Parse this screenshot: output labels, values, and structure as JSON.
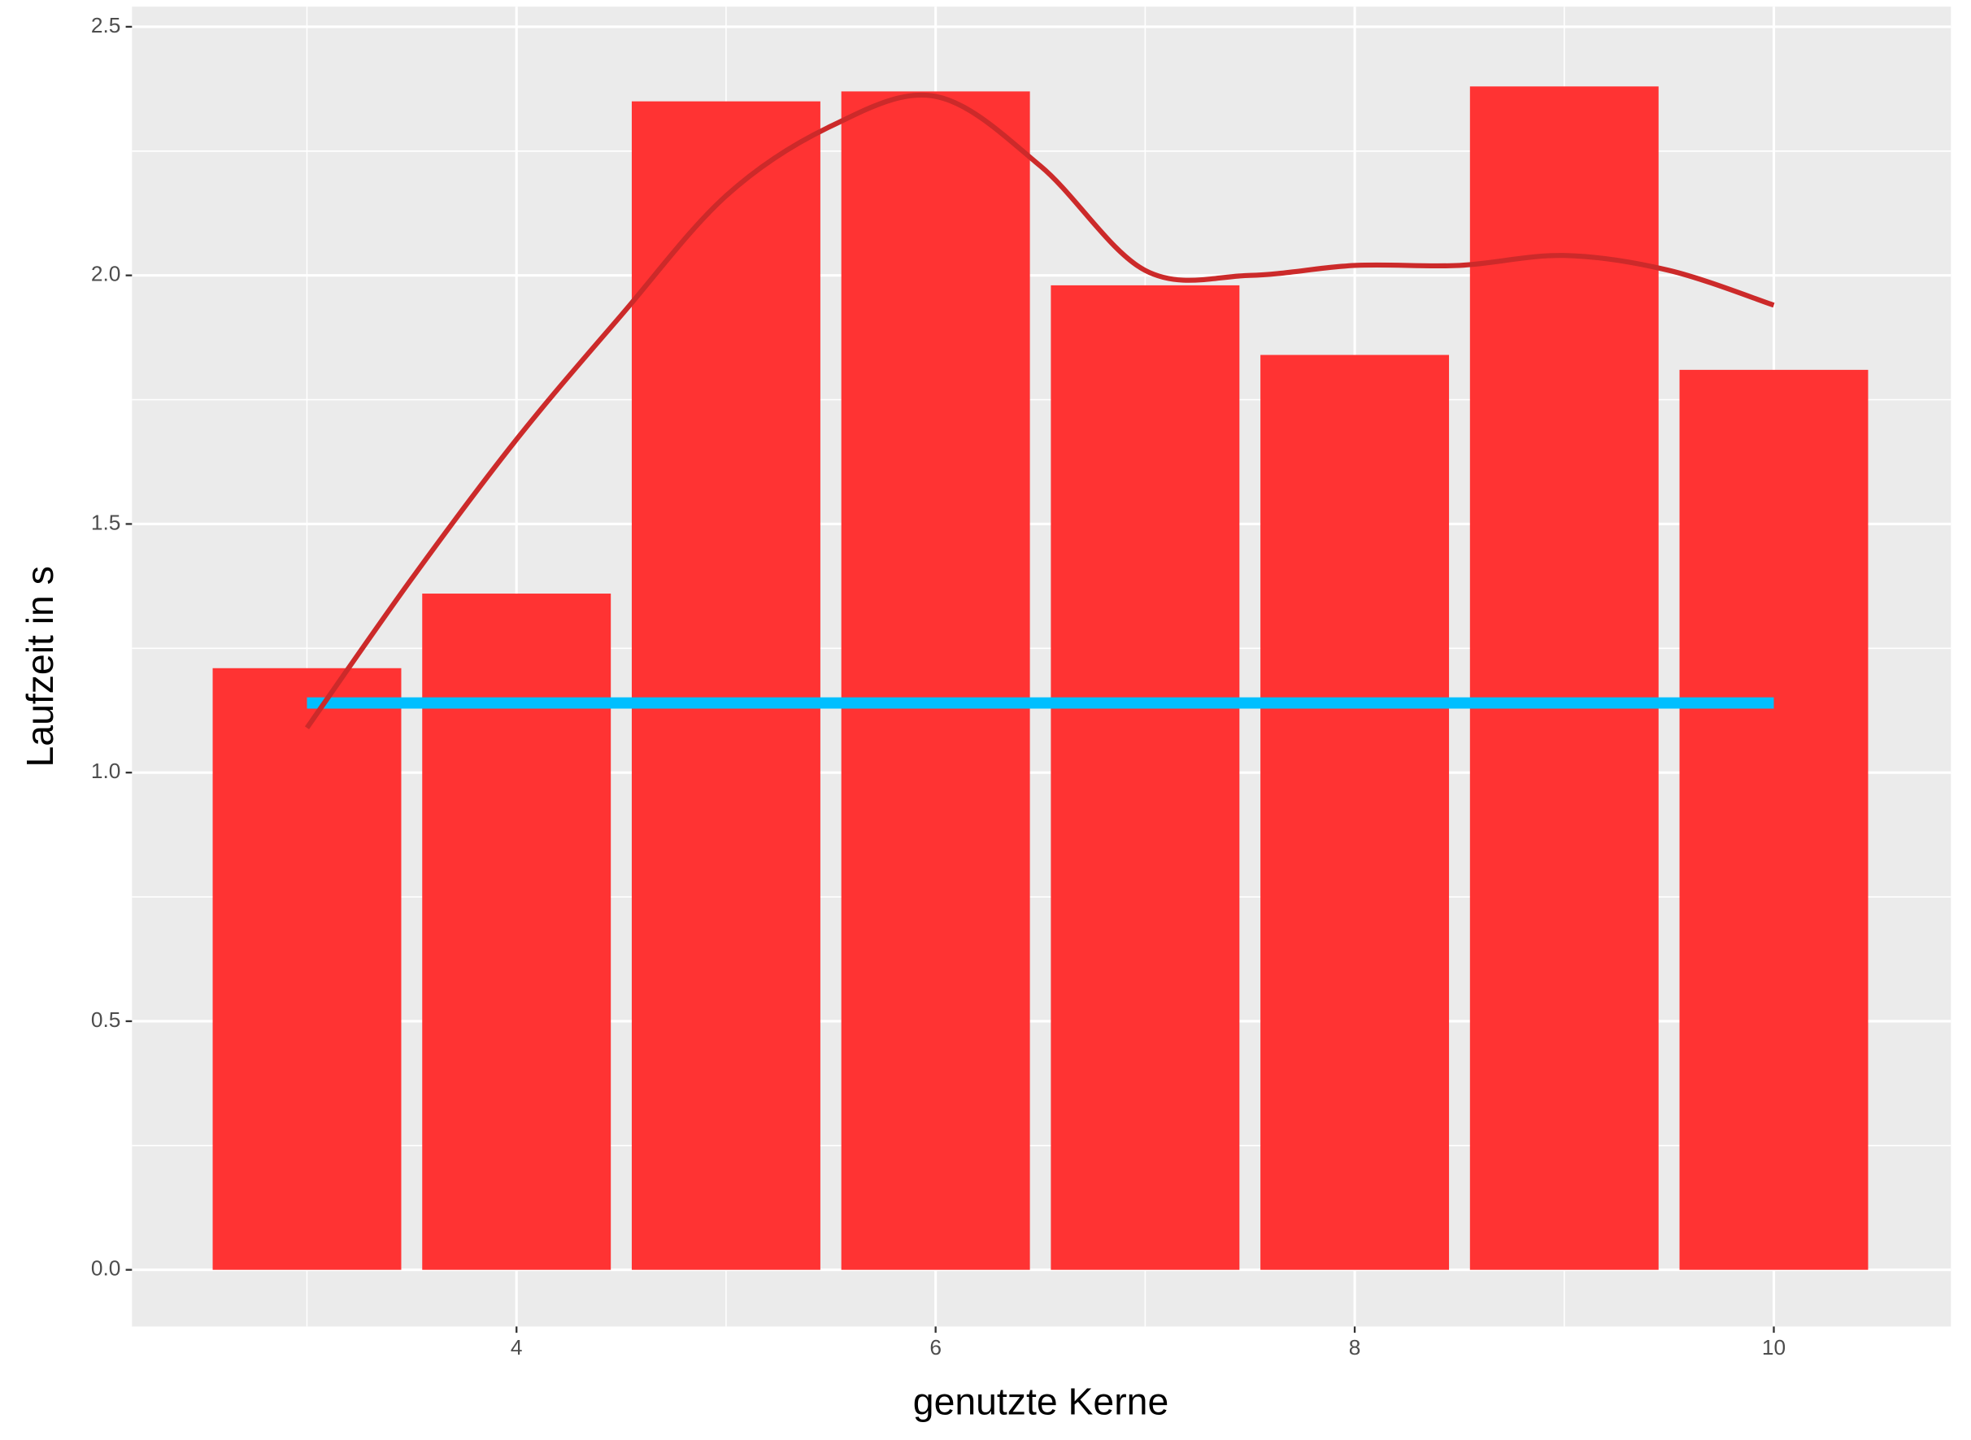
{
  "chart_data": {
    "type": "bar",
    "x_label": "genutzte Kerne",
    "y_label": "Laufzeit in s",
    "x": [
      3,
      4,
      5,
      6,
      7,
      8,
      9,
      10
    ],
    "values": [
      1.21,
      1.36,
      2.35,
      2.37,
      1.98,
      1.84,
      2.38,
      1.81
    ],
    "color": "#ff3333",
    "bar_width": 0.9,
    "smooth": {
      "x": [
        3,
        3.5,
        4,
        4.5,
        5,
        5.5,
        6,
        6.5,
        7,
        7.5,
        8,
        8.5,
        9,
        9.5,
        10
      ],
      "values": [
        1.09,
        1.39,
        1.67,
        1.92,
        2.16,
        2.3,
        2.36,
        2.22,
        2.01,
        2.0,
        2.02,
        2.02,
        2.04,
        2.01,
        1.94
      ],
      "color": "#cc2a2a"
    },
    "hline": {
      "x": [
        3,
        10
      ],
      "value": 1.14,
      "color": "#00bfff"
    },
    "xlim": [
      2.165,
      10.845
    ],
    "ylim": [
      -0.114,
      2.5
    ],
    "xticks": [
      4,
      6,
      8,
      10
    ],
    "yticks": [
      {
        "value": 0,
        "label": "0.0"
      },
      0.5,
      {
        "value": 1,
        "label": "1.0"
      },
      1.5,
      {
        "value": 2,
        "label": "2.0"
      },
      2.5
    ],
    "xminor": [
      3,
      5,
      7,
      9
    ],
    "yminor": [
      0.25,
      0.75,
      1.25,
      1.75,
      2.25
    ],
    "grid": true
  }
}
